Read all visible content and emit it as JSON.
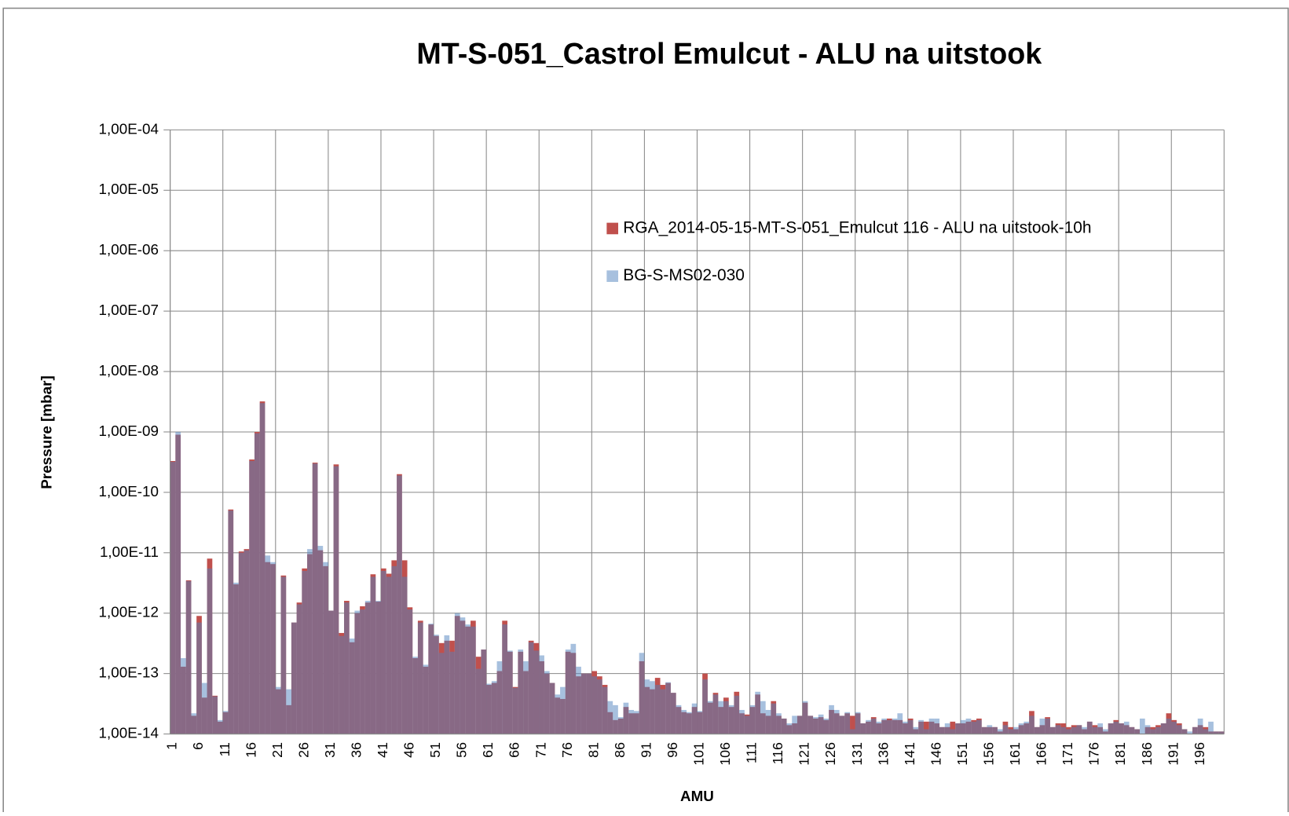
{
  "chart_data": {
    "type": "bar",
    "log_y": true,
    "grid": true,
    "legend": "upper right",
    "title": "MT-S-051_Castrol Emulcut - ALU na uitstook",
    "x_label": "AMU",
    "y_label": "Pressure [mbar]",
    "categories": [
      "1",
      null,
      null,
      null,
      null,
      "6",
      null,
      null,
      null,
      null,
      "11",
      null,
      null,
      null,
      null,
      "16",
      null,
      null,
      null,
      null,
      "21",
      null,
      null,
      null,
      null,
      "26",
      null,
      null,
      null,
      null,
      "31",
      null,
      null,
      null,
      null,
      "36",
      null,
      null,
      null,
      null,
      "41",
      null,
      null,
      null,
      null,
      "46",
      null,
      null,
      null,
      null,
      "51",
      null,
      null,
      null,
      null,
      "56",
      null,
      null,
      null,
      null,
      "61",
      null,
      null,
      null,
      null,
      "66",
      null,
      null,
      null,
      null,
      "71",
      null,
      null,
      null,
      null,
      "76",
      null,
      null,
      null,
      null,
      "81",
      null,
      null,
      null,
      null,
      "86",
      null,
      null,
      null,
      null,
      "91",
      null,
      null,
      null,
      null,
      "96",
      null,
      null,
      null,
      null,
      "101",
      null,
      null,
      null,
      null,
      "106",
      null,
      null,
      null,
      null,
      "111",
      null,
      null,
      null,
      null,
      "116",
      null,
      null,
      null,
      null,
      "121",
      null,
      null,
      null,
      null,
      "126",
      null,
      null,
      null,
      null,
      "131",
      null,
      null,
      null,
      null,
      "136",
      null,
      null,
      null,
      null,
      "141",
      null,
      null,
      null,
      null,
      "146",
      null,
      null,
      null,
      null,
      "151",
      null,
      null,
      null,
      null,
      "156",
      null,
      null,
      null,
      null,
      "161",
      null,
      null,
      null,
      null,
      "166",
      null,
      null,
      null,
      null,
      "171",
      null,
      null,
      null,
      null,
      "176",
      null,
      null,
      null,
      null,
      "181",
      null,
      null,
      null,
      null,
      "186",
      null,
      null,
      null,
      null,
      "191",
      null,
      null,
      null,
      null,
      "196",
      null,
      null,
      null,
      null
    ],
    "ylim": [
      1e-14,
      0.0001
    ],
    "yticks": [
      {
        "value": 1e-14,
        "label": "1,00E-14"
      },
      {
        "value": 1e-13,
        "label": "1,00E-13"
      },
      {
        "value": 1e-12,
        "label": "1,00E-12"
      },
      {
        "value": 1e-11,
        "label": "1,00E-11"
      },
      {
        "value": 1e-10,
        "label": "1,00E-10"
      },
      {
        "value": 1e-09,
        "label": "1,00E-09"
      },
      {
        "value": 1e-08,
        "label": "1,00E-08"
      },
      {
        "value": 1e-07,
        "label": "1,00E-07"
      },
      {
        "value": 1e-06,
        "label": "1,00E-06"
      },
      {
        "value": 1e-05,
        "label": "1,00E-05"
      },
      {
        "value": 0.0001,
        "label": "1,00E-04"
      }
    ],
    "series": [
      {
        "name": "RGA_2014-05-15-MT-S-051_Emulcut 116 - ALU na uitstook-10h",
        "color": "#c0504d",
        "opacity": 1,
        "values": [
          3.3e-10,
          9e-10,
          1.3e-13,
          3.5e-12,
          2e-14,
          9e-13,
          4e-14,
          8e-12,
          4.3e-14,
          1.6e-14,
          2.3e-14,
          5.2e-11,
          3e-12,
          1.05e-11,
          1.15e-11,
          3.5e-10,
          1e-09,
          3.2e-09,
          7e-12,
          6.5e-12,
          5.5e-14,
          4.2e-12,
          3e-14,
          7e-13,
          1.5e-12,
          5.5e-12,
          9.5e-12,
          3.1e-10,
          1.1e-11,
          6e-12,
          1.1e-12,
          2.9e-10,
          4.7e-13,
          1.6e-12,
          3.3e-13,
          1e-12,
          1.3e-12,
          1.5e-12,
          4.4e-12,
          1.55e-12,
          5.5e-12,
          4.5e-12,
          7.5e-12,
          2e-10,
          7.5e-12,
          1.25e-12,
          1.8e-13,
          7.5e-13,
          1.3e-13,
          6.5e-13,
          4.2e-13,
          3.2e-13,
          3.5e-13,
          3.5e-13,
          9e-13,
          7.5e-13,
          6e-13,
          7.5e-13,
          1.9e-13,
          2.5e-13,
          6.5e-14,
          7e-14,
          1.1e-13,
          7.5e-13,
          2.3e-13,
          6e-14,
          2.3e-13,
          1.1e-13,
          3.5e-13,
          3.2e-13,
          1.6e-13,
          1e-13,
          7e-14,
          4e-14,
          3.8e-14,
          2.3e-13,
          2.2e-13,
          9e-14,
          1e-13,
          1e-13,
          1.1e-13,
          9e-14,
          6.5e-14,
          2.3e-14,
          1.7e-14,
          1.8e-14,
          2.8e-14,
          2.2e-14,
          2.2e-14,
          1.6e-13,
          6e-14,
          5.5e-14,
          8.5e-14,
          6.5e-14,
          7e-14,
          4.8e-14,
          2.8e-14,
          2.3e-14,
          2.2e-14,
          2.8e-14,
          2.3e-14,
          1e-13,
          3.3e-14,
          4.8e-14,
          2.8e-14,
          4e-14,
          2.8e-14,
          5e-14,
          2.2e-14,
          2.1e-14,
          2.8e-14,
          4.5e-14,
          2.2e-14,
          2e-14,
          3.5e-14,
          2e-14,
          1.8e-14,
          1.4e-14,
          1.5e-14,
          2e-14,
          3.3e-14,
          2e-14,
          1.8e-14,
          1.9e-14,
          1.7e-14,
          2.5e-14,
          2.2e-14,
          2e-14,
          2.2e-14,
          2e-14,
          2.2e-14,
          1.5e-14,
          1.6e-14,
          1.9e-14,
          1.5e-14,
          1.7e-14,
          1.8e-14,
          1.7e-14,
          1.7e-14,
          1.5e-14,
          1.8e-14,
          1.2e-14,
          1.6e-14,
          1.6e-14,
          1.6e-14,
          1.5e-14,
          1.3e-14,
          1.3e-14,
          1.6e-14,
          1.5e-14,
          1.5e-14,
          1.6e-14,
          1.7e-14,
          1.8e-14,
          1.3e-14,
          1.3e-14,
          1.3e-14,
          1.1e-14,
          1.6e-14,
          1.3e-14,
          1.2e-14,
          1.4e-14,
          1.5e-14,
          2.4e-14,
          1.3e-14,
          1.4e-14,
          1.9e-14,
          1.3e-14,
          1.5e-14,
          1.5e-14,
          1.3e-14,
          1.4e-14,
          1.4e-14,
          1.2e-14,
          1.6e-14,
          1.4e-14,
          1.3e-14,
          1.1e-14,
          1.5e-14,
          1.7e-14,
          1.5e-14,
          1.4e-14,
          1.3e-14,
          1.2e-14,
          9e-15,
          1.3e-14,
          1.3e-14,
          1.4e-14,
          1.5e-14,
          2.2e-14,
          1.7e-14,
          1.5e-14,
          1.2e-14,
          1e-14,
          1.3e-14,
          1.4e-14,
          1.3e-14,
          1.1e-14,
          1.1e-14,
          1.1e-14
        ]
      },
      {
        "name": "BG-S-MS02-030",
        "color": "#4f81bd",
        "opacity": 0.5,
        "values": [
          3.2e-10,
          1e-09,
          1.8e-13,
          3.4e-12,
          2.2e-14,
          7e-13,
          7e-14,
          5.5e-12,
          4.2e-14,
          1.7e-14,
          2.4e-14,
          5e-11,
          3.2e-12,
          1e-11,
          1.1e-11,
          3.3e-10,
          9.5e-10,
          3e-09,
          9e-12,
          7e-12,
          6e-14,
          4e-12,
          5.5e-14,
          7e-13,
          1.4e-12,
          5e-12,
          1.15e-11,
          3e-10,
          1.3e-11,
          7e-12,
          1.1e-12,
          2.7e-10,
          4.2e-13,
          1.5e-12,
          3.8e-13,
          1.1e-12,
          1.15e-12,
          1.6e-12,
          4e-12,
          1.6e-12,
          5e-12,
          4e-12,
          6e-12,
          1.9e-10,
          4e-12,
          1.15e-12,
          1.9e-13,
          7e-13,
          1.4e-13,
          6.7e-13,
          4.4e-13,
          2.2e-13,
          4.3e-13,
          2.3e-13,
          1e-12,
          8.5e-13,
          6.5e-13,
          6e-13,
          1.2e-13,
          2.5e-13,
          6.8e-14,
          7.5e-14,
          1.6e-13,
          6.5e-13,
          2.4e-13,
          5.8e-14,
          2.5e-13,
          1.6e-13,
          3.3e-13,
          2.4e-13,
          2e-13,
          1.1e-13,
          7e-14,
          4.5e-14,
          6e-14,
          2.5e-13,
          3.1e-13,
          1.3e-13,
          1e-13,
          1e-13,
          9e-14,
          8e-14,
          6e-14,
          3.5e-14,
          3e-14,
          1.9e-14,
          3.3e-14,
          2.5e-14,
          2.4e-14,
          2.2e-13,
          8e-14,
          7.5e-14,
          6.5e-14,
          5.5e-14,
          7.2e-14,
          4.8e-14,
          3e-14,
          2.5e-14,
          2.3e-14,
          3.2e-14,
          2.4e-14,
          8e-14,
          3.5e-14,
          4.5e-14,
          3.5e-14,
          3.5e-14,
          3e-14,
          4.3e-14,
          2.5e-14,
          2e-14,
          3e-14,
          5e-14,
          3.5e-14,
          2.5e-14,
          3.2e-14,
          2.2e-14,
          1.8e-14,
          1.5e-14,
          2e-14,
          2e-14,
          3.5e-14,
          2e-14,
          1.9e-14,
          2.1e-14,
          1.8e-14,
          3e-14,
          2.5e-14,
          2e-14,
          2.3e-14,
          1.2e-14,
          2.3e-14,
          1.5e-14,
          1.7e-14,
          1.8e-14,
          1.6e-14,
          1.8e-14,
          1.7e-14,
          1.8e-14,
          2.2e-14,
          1.6e-14,
          1.7e-14,
          1.3e-14,
          1.7e-14,
          1.2e-14,
          1.8e-14,
          1.8e-14,
          1.3e-14,
          1.5e-14,
          1.2e-14,
          1.5e-14,
          1.7e-14,
          1.8e-14,
          1.6e-14,
          1.7e-14,
          1.3e-14,
          1.4e-14,
          1.3e-14,
          1.2e-14,
          1.4e-14,
          1.2e-14,
          1.3e-14,
          1.5e-14,
          1.6e-14,
          2e-14,
          1.3e-14,
          1.8e-14,
          1.8e-14,
          1.3e-14,
          1.4e-14,
          1.3e-14,
          1.2e-14,
          1.3e-14,
          1.4e-14,
          1.3e-14,
          1.6e-14,
          1.3e-14,
          1.5e-14,
          1.2e-14,
          1.5e-14,
          1.6e-14,
          1.5e-14,
          1.6e-14,
          1.3e-14,
          1.2e-14,
          1.8e-14,
          1.4e-14,
          1.2e-14,
          1.3e-14,
          1.5e-14,
          1.8e-14,
          1.6e-14,
          1.4e-14,
          1.2e-14,
          1.1e-14,
          1.3e-14,
          1.8e-14,
          1.2e-14,
          1.6e-14,
          1.1e-14,
          1.1e-14
        ]
      }
    ]
  }
}
